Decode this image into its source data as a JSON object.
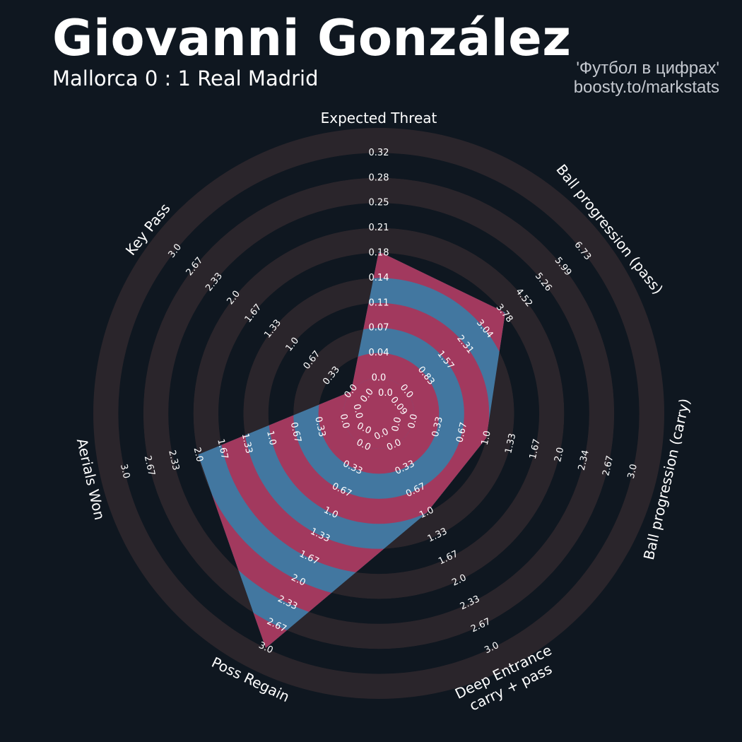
{
  "header": {
    "title": "Giovanni González",
    "subtitle": "Mallorca 0 : 1 Real Madrid",
    "credit_line1": "'Футбол в цифрах'",
    "credit_line2": "boosty.to/markstats"
  },
  "colors": {
    "background": "#0f1720",
    "ring_light": "#2a252b",
    "ring_dark": "#0f1720",
    "fill_primary": "#4277a0",
    "fill_secondary": "#a2395e",
    "label": "#ffffff"
  },
  "chart_data": {
    "type": "radar",
    "params": [
      "Expected Threat",
      "Ball progression (pass)",
      "Ball progression (carry)",
      "Deep Entrance\ncarry + pass",
      "Poss Regain",
      "Aerials Won",
      "Key Pass"
    ],
    "min": [
      0.0,
      0.0,
      0.0,
      0.0,
      0.0,
      0.0,
      0.0
    ],
    "max": [
      0.32,
      6.73,
      3.0,
      3.0,
      3.0,
      3.0,
      3.0
    ],
    "values": [
      0.18,
      3.78,
      1.0,
      1.0,
      3.0,
      2.0,
      0.0
    ],
    "ring_labels": [
      [
        "0.0",
        "0.04",
        "0.07",
        "0.11",
        "0.14",
        "0.18",
        "0.21",
        "0.25",
        "0.28",
        "0.32"
      ],
      [
        "0.0",
        "0.83",
        "1.57",
        "2.31",
        "3.04",
        "3.78",
        "4.52",
        "5.26",
        "5.99",
        "6.73"
      ],
      [
        "0.0",
        "0.33",
        "0.67",
        "1.0",
        "1.33",
        "1.67",
        "2.0",
        "2.34",
        "2.67",
        "3.0"
      ],
      [
        "0.0",
        "0.33",
        "0.67",
        "1.0",
        "1.33",
        "1.67",
        "2.0",
        "2.33",
        "2.67",
        "3.0"
      ],
      [
        "0.0",
        "0.33",
        "0.67",
        "1.0",
        "1.33",
        "1.67",
        "2.0",
        "2.33",
        "2.67",
        "3.0"
      ],
      [
        "0.0",
        "0.33",
        "0.67",
        "1.0",
        "1.33",
        "1.67",
        "2.0",
        "2.33",
        "2.67",
        "3.0"
      ],
      [
        "0.0",
        "0.33",
        "0.67",
        "1.0",
        "1.33",
        "1.67",
        "2.0",
        "2.33",
        "2.67",
        "3.0"
      ]
    ],
    "center_labels": [
      "0.0",
      "0.09",
      "0.0",
      "0.0",
      "0.0",
      "0.0",
      "0.0"
    ]
  }
}
